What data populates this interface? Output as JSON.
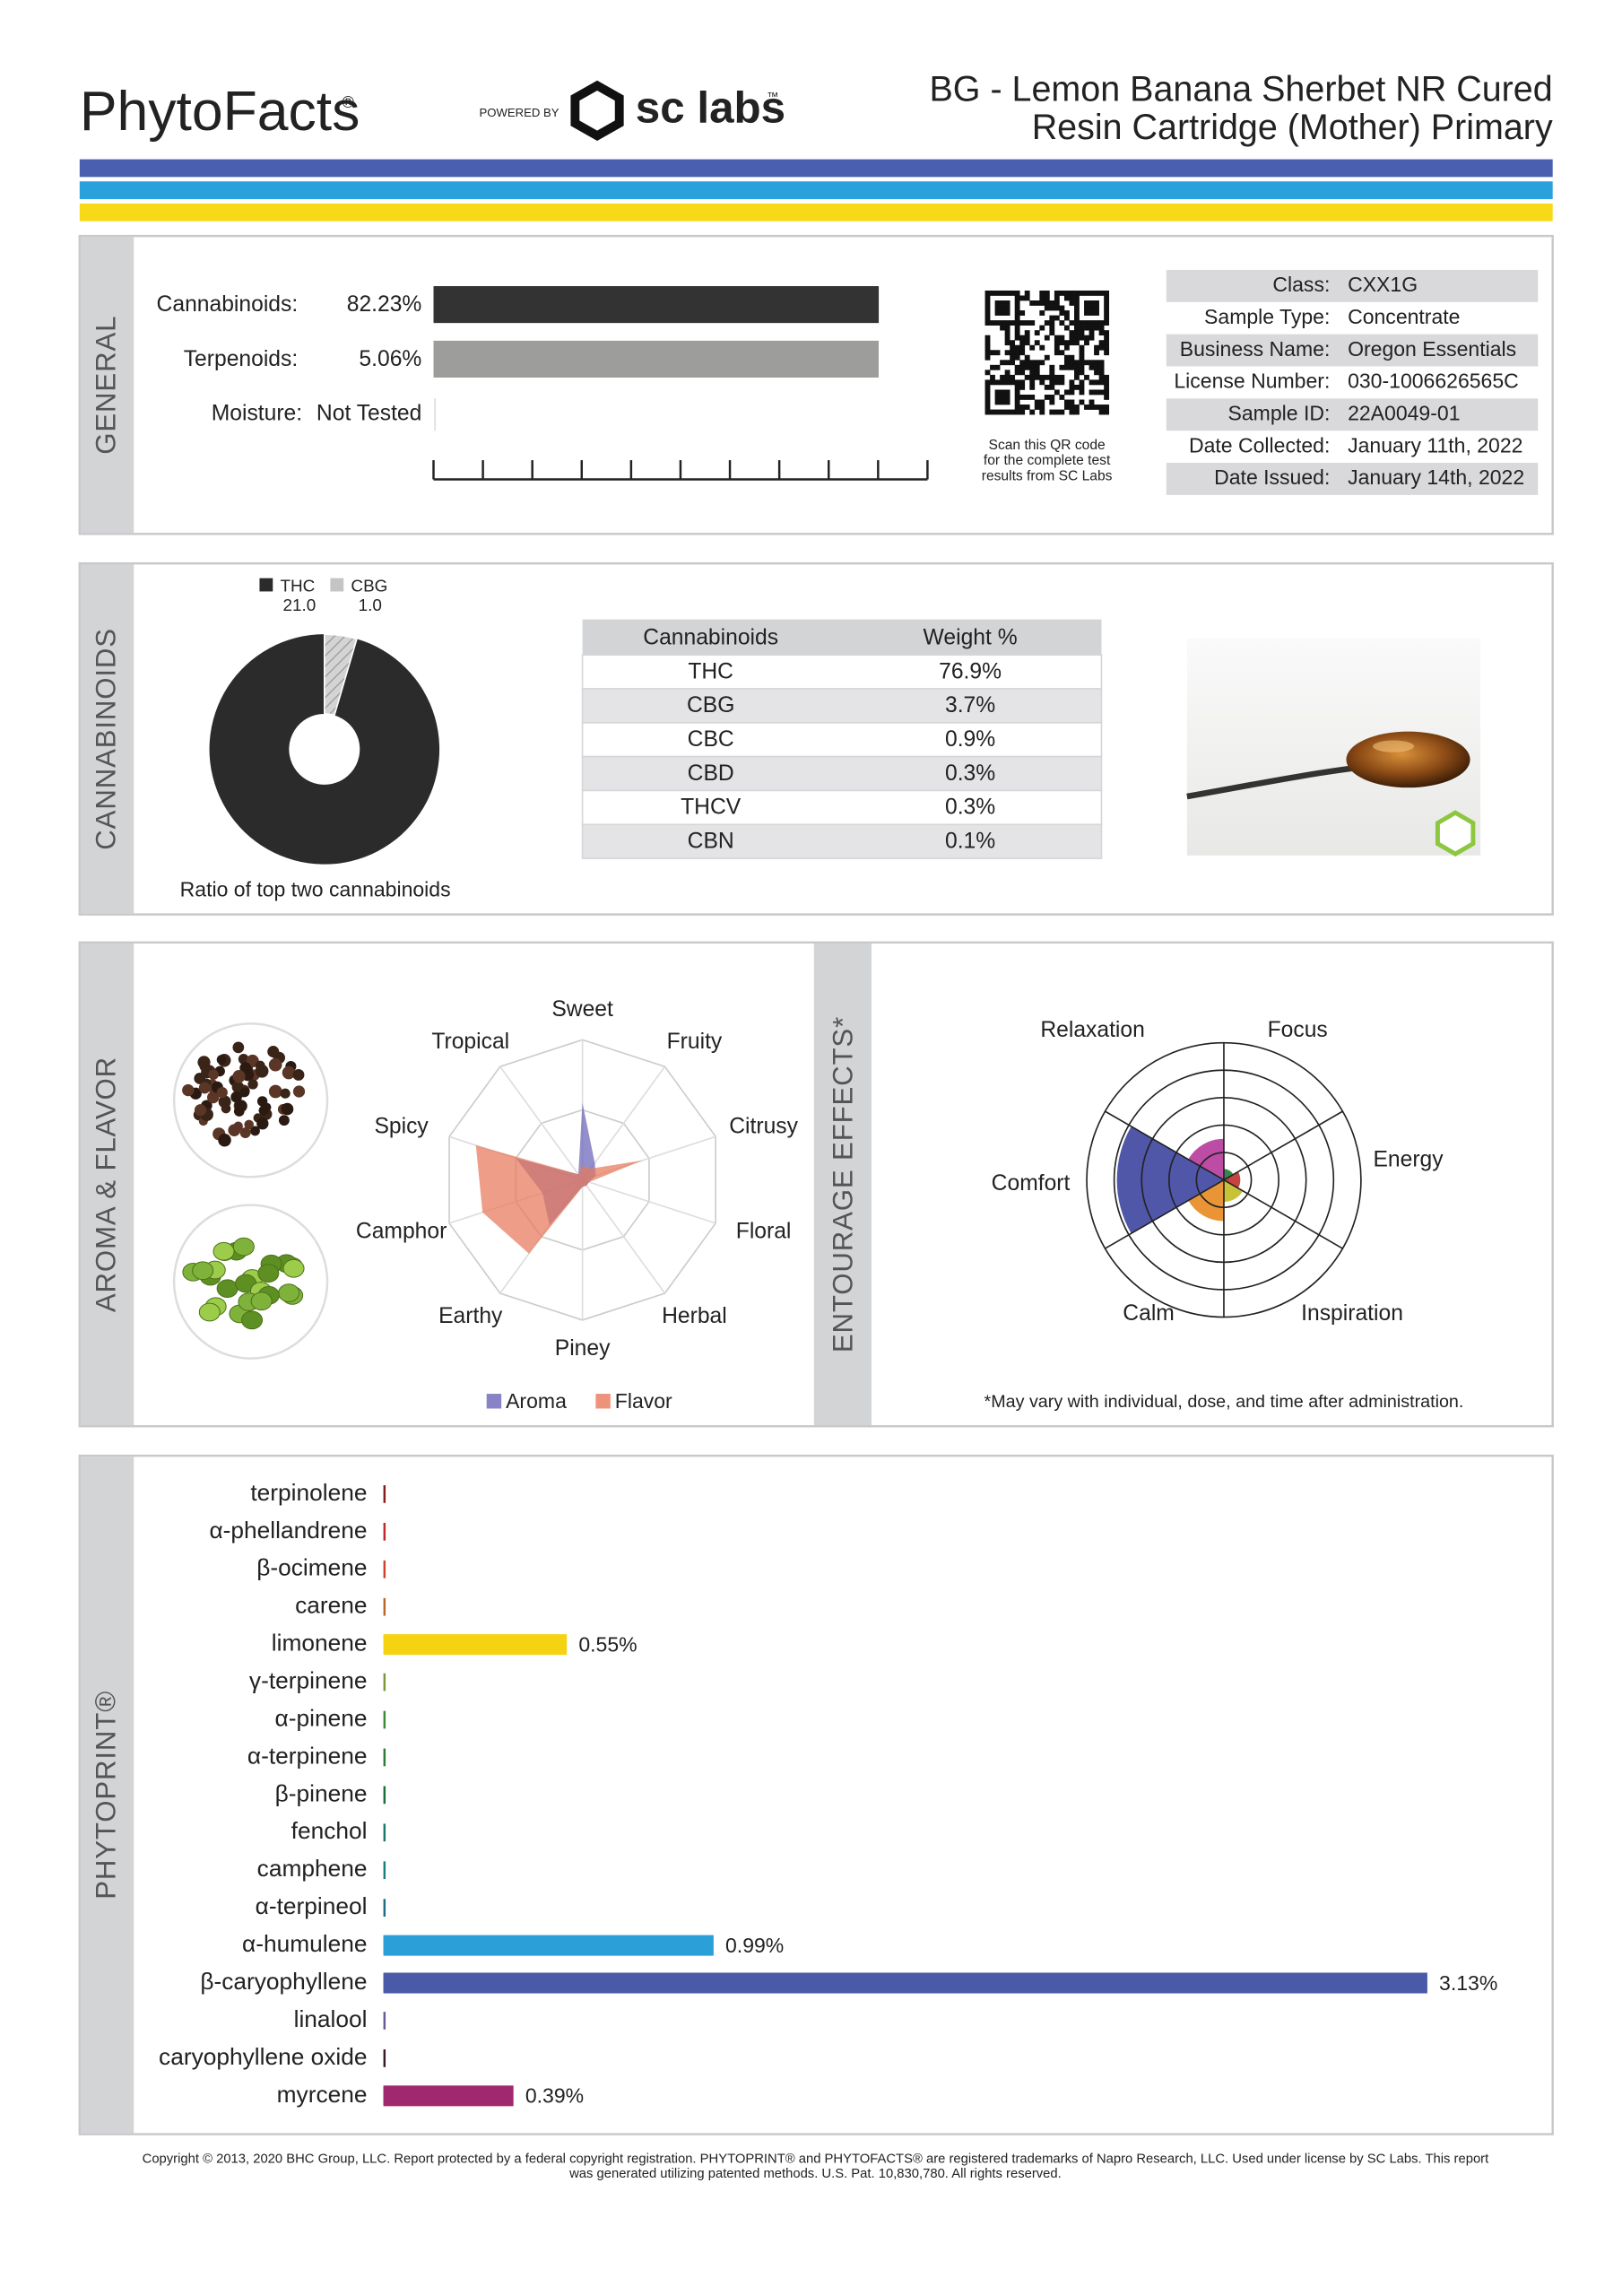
{
  "header": {
    "brand": "PhytoFacts",
    "brand_mark": "®",
    "powered_by": "POWERED BY",
    "lab": "sc labs",
    "lab_mark": "™",
    "title_lines": [
      "BG - Lemon Banana Sherbet NR Cured",
      "Resin Cartridge (Mother) Primary"
    ]
  },
  "general": {
    "section": "GENERAL",
    "bars": [
      {
        "label": "Cannabinoids:",
        "value": 82.23,
        "value_label": "82.23%",
        "color": "#333333",
        "xlim": [
          0,
          86.6
        ]
      },
      {
        "label": "Terpenoids:",
        "value": 5.06,
        "value_label": "5.06%",
        "color": "#9d9d9b",
        "xlim": [
          0,
          5.33
        ]
      }
    ],
    "moisture": {
      "label": "Moisture:",
      "value": "Not Tested"
    },
    "qr_caption": [
      "Scan this QR code",
      "for the complete test",
      "results from SC Labs"
    ],
    "info": [
      [
        "Class:",
        "CXX1G"
      ],
      [
        "Sample Type:",
        "Concentrate"
      ],
      [
        "Business Name:",
        "Oregon Essentials"
      ],
      [
        "License Number:",
        "030-1006626565C"
      ],
      [
        "Sample ID:",
        "22A0049-01"
      ],
      [
        "Date Collected:",
        "January 11th, 2022"
      ],
      [
        "Date Issued:",
        "January 14th, 2022"
      ]
    ]
  },
  "cannabinoids": {
    "section": "CANNABINOIDS",
    "pie": {
      "type": "pie",
      "categories": [
        "THC",
        "CBG"
      ],
      "values": [
        21,
        1
      ],
      "value_labels": [
        "21.0",
        "1.0"
      ],
      "colors": [
        "#2b2b2b",
        "#c4c4c4"
      ],
      "caption": "Ratio of top two cannabinoids"
    },
    "table": {
      "columns": [
        "Cannabinoids",
        "Weight %"
      ],
      "rows": [
        [
          "THC",
          "76.9%"
        ],
        [
          "CBG",
          "3.7%"
        ],
        [
          "CBC",
          "0.9%"
        ],
        [
          "CBD",
          "0.3%"
        ],
        [
          "THCV",
          "0.3%"
        ],
        [
          "CBN",
          "0.1%"
        ]
      ]
    }
  },
  "aroma": {
    "type": "radar",
    "section": "AROMA & FLAVOR",
    "categories": [
      "Sweet",
      "Fruity",
      "Citrusy",
      "Floral",
      "Herbal",
      "Piney",
      "Earthy",
      "Camphor",
      "Spicy",
      "Tropical"
    ],
    "rlim": [
      0,
      10
    ],
    "rticks": [
      5,
      10
    ],
    "series": [
      {
        "name": "Aroma",
        "color": "#6a64b8",
        "values": [
          5.5,
          1.5,
          1,
          0.5,
          0.5,
          0.5,
          4,
          3,
          5,
          0.5
        ]
      },
      {
        "name": "Flavor",
        "color": "#e8785a",
        "values": [
          1,
          1,
          4.5,
          0.5,
          0.5,
          0.5,
          6.5,
          7.5,
          8,
          0.5
        ]
      }
    ]
  },
  "entourage": {
    "type": "polar",
    "section": "ENTOURAGE EFFECTS*",
    "categories": [
      "Relaxation",
      "Focus",
      "Energy",
      "Inspiration",
      "Calm",
      "Comfort"
    ],
    "values": [
      1.5,
      0.4,
      0.6,
      0.8,
      1.5,
      3.9
    ],
    "colors": [
      "#b5389a",
      "#1e7b3a",
      "#c0302a",
      "#c2bb22",
      "#e8891f",
      "#3d45a0"
    ],
    "rlim": [
      0,
      5
    ],
    "rticks": [
      1,
      2,
      3,
      4,
      5
    ],
    "note": "*May vary with individual, dose, and time after administration."
  },
  "phytoprint": {
    "type": "bar",
    "section": "PHYTOPRINT®",
    "categories": [
      "terpinolene",
      "α-phellandrene",
      "β-ocimene",
      "carene",
      "limonene",
      "γ-terpinene",
      "α-pinene",
      "α-terpinene",
      "β-pinene",
      "fenchol",
      "camphene",
      "α-terpineol",
      "α-humulene",
      "β-caryophyllene",
      "linalool",
      "caryophyllene oxide",
      "myrcene"
    ],
    "values": [
      0,
      0,
      0,
      0,
      0.55,
      0,
      0,
      0,
      0,
      0,
      0,
      0,
      0.99,
      3.13,
      0,
      0,
      0.39
    ],
    "value_labels": [
      null,
      null,
      null,
      null,
      "0.55%",
      null,
      null,
      null,
      null,
      null,
      null,
      null,
      "0.99%",
      "3.13%",
      null,
      null,
      "0.39%"
    ],
    "colors": [
      "#8b1a1a",
      "#c0282a",
      "#d0402a",
      "#b8682a",
      "#f5d312",
      "#7a9a3a",
      "#3a8a3a",
      "#2e7d32",
      "#1b6e3a",
      "#1a7a6a",
      "#1a7f7f",
      "#1a6e8a",
      "#2a9fd8",
      "#4a5aa8",
      "#6a5a9a",
      "#3a1a2a",
      "#a0286e"
    ],
    "label_colors": [
      "#8b1a1a",
      "#c0282a",
      "#d0402a",
      "#b8682a",
      "#a08a10",
      "#5a7a2a",
      "#3a8a3a",
      "#2e7d32",
      "#1b6e3a",
      "#1a7a6a",
      "#1a7f7f",
      "#1a6e8a",
      "#1a80b8",
      "#4a5aa8",
      "#6a5a9a",
      "#3a1a2a",
      "#a0286e"
    ],
    "xlim": [
      0,
      3.13
    ]
  },
  "footer": [
    "Copyright © 2013, 2020 BHC Group, LLC. Report protected by a federal copyright registration. PHYTOPRINT® and PHYTOFACTS® are registered trademarks of Napro Research, LLC. Used under license by SC Labs. This report",
    "was generated utilizing patented methods. U.S. Pat. 10,830,780. All rights reserved."
  ]
}
